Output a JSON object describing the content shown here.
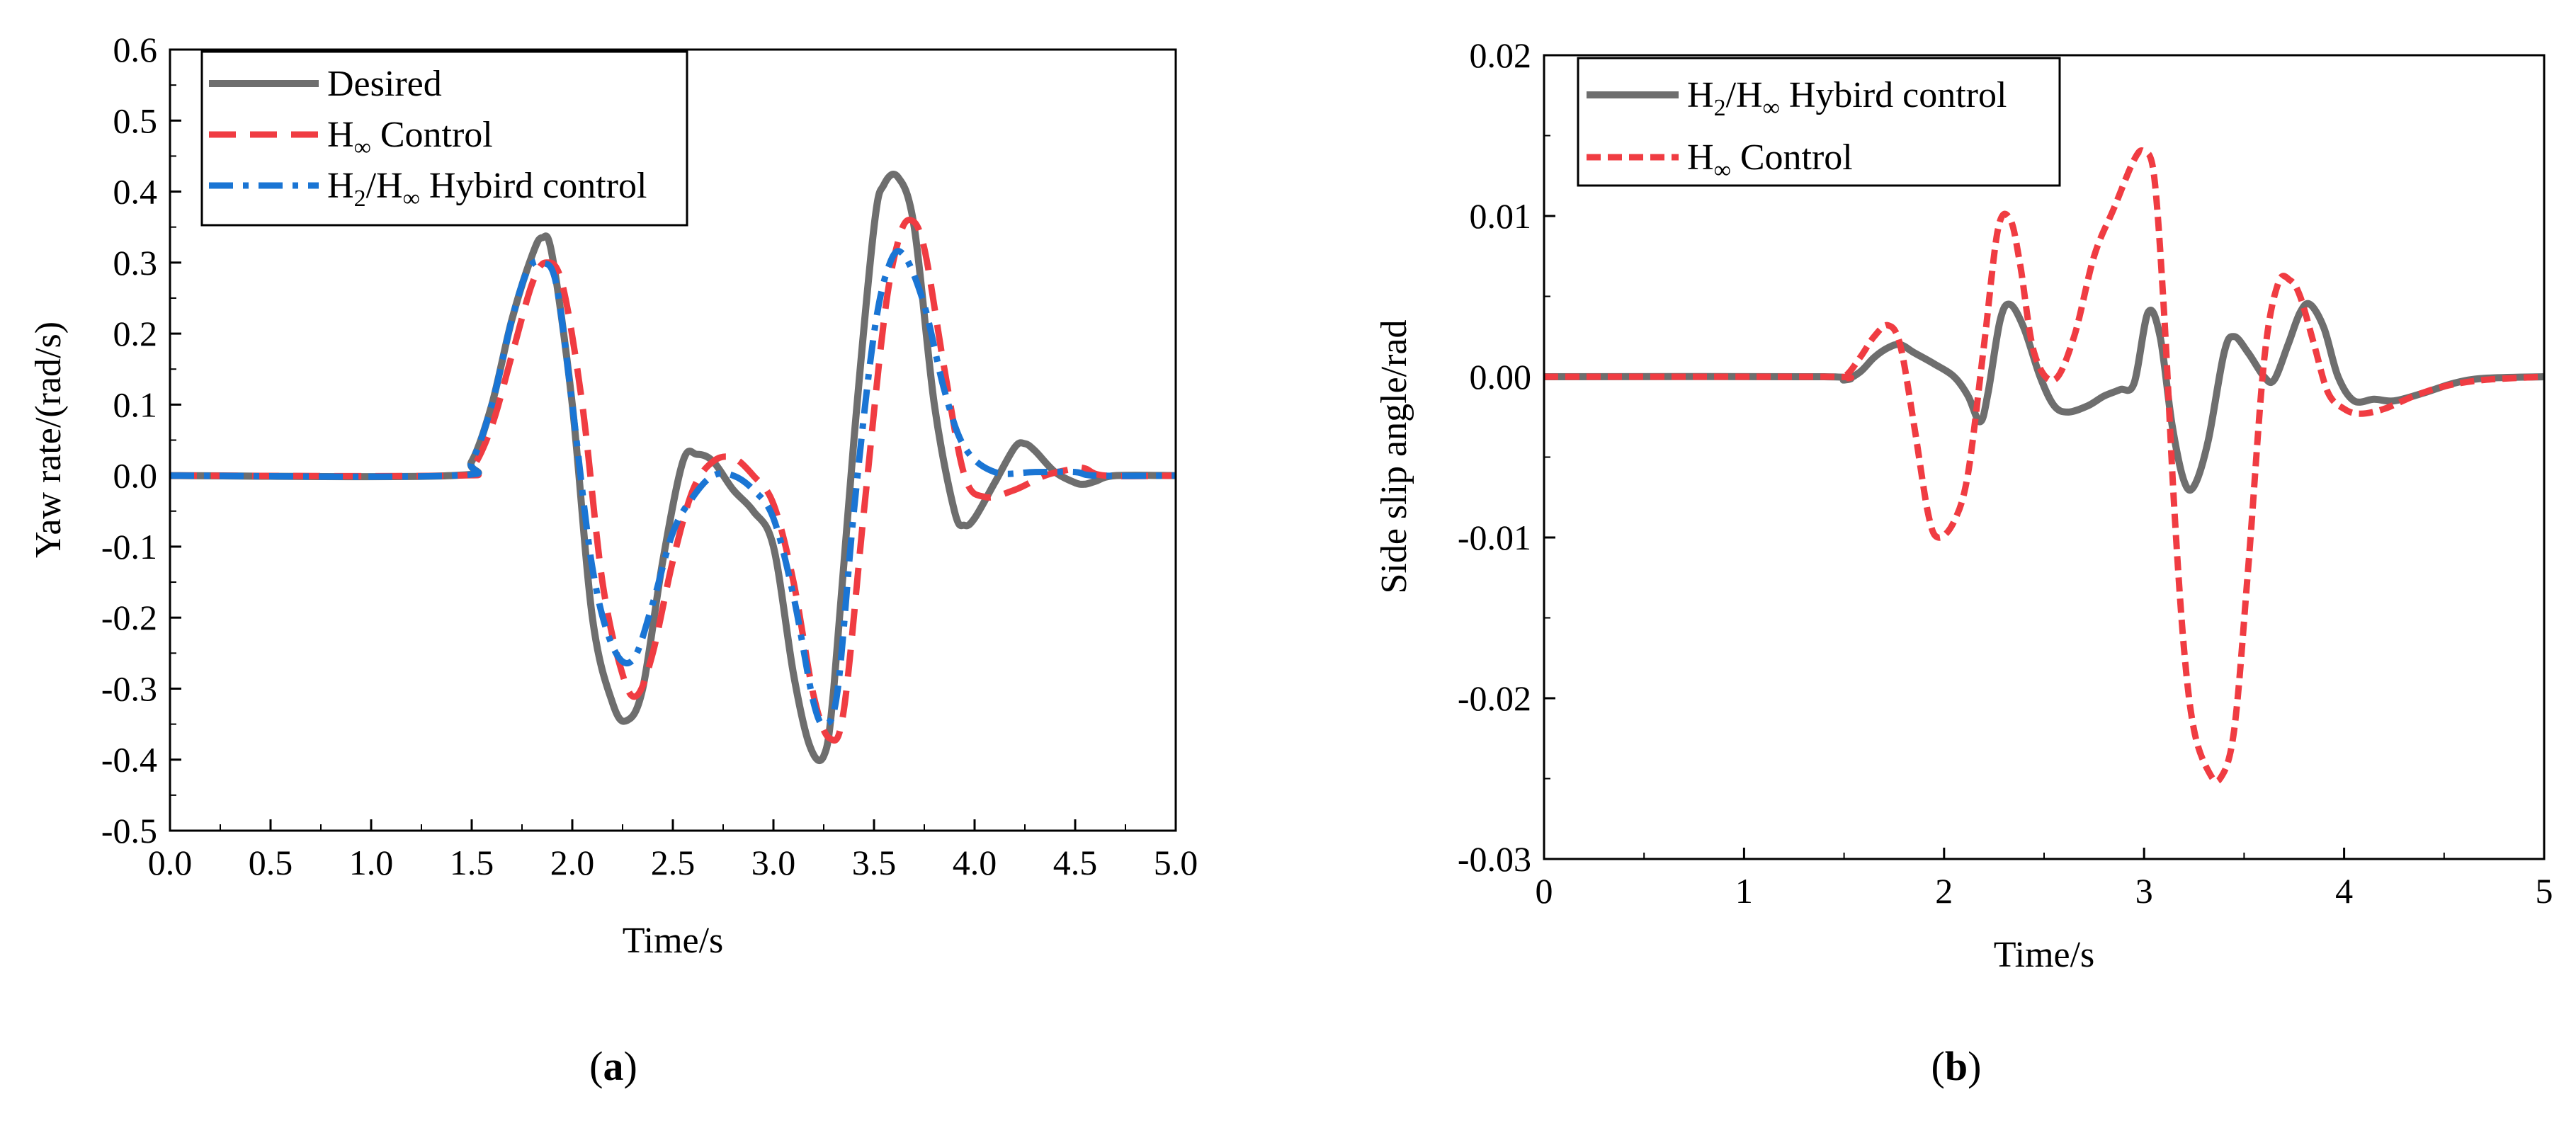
{
  "colors": {
    "desired": "#6e6e6e",
    "h_inf": "#f03c42",
    "hybrid_blue": "#1a75d4",
    "hybrid_gray": "#6e6e6e"
  },
  "panel_a": {
    "caption_letter": "a"
  },
  "panel_b": {
    "caption_letter": "b"
  },
  "chart_data": [
    {
      "type": "line",
      "xlabel": "Time/s",
      "ylabel": "Yaw rate/(rad/s)",
      "xlim": [
        0,
        5
      ],
      "ylim": [
        -0.5,
        0.6
      ],
      "xticks": [
        "0.0",
        "0.5",
        "1.0",
        "1.5",
        "2.0",
        "2.5",
        "3.0",
        "3.5",
        "4.0",
        "4.5",
        "5.0"
      ],
      "yticks": [
        "-0.5",
        "-0.4",
        "-0.3",
        "-0.2",
        "-0.1",
        "0.0",
        "0.1",
        "0.2",
        "0.3",
        "0.4",
        "0.5",
        "0.6"
      ],
      "legend_position": "top-left",
      "legend": [
        {
          "base": "Desired",
          "sub": "",
          "sub2": "",
          "rest": ""
        },
        {
          "base": "H",
          "sub": "∞",
          "sub2": "",
          "rest": " Control"
        },
        {
          "base": "H",
          "sub": "2",
          "sub2": "∞",
          "rest": " Hybird control"
        }
      ],
      "series": [
        {
          "name": "Desired",
          "style": "solid",
          "color": "#6e6e6e",
          "x": [
            0,
            1.4,
            1.5,
            1.6,
            1.7,
            1.8,
            1.85,
            1.9,
            2.0,
            2.1,
            2.2,
            2.27,
            2.35,
            2.45,
            2.55,
            2.62,
            2.7,
            2.8,
            2.9,
            3.0,
            3.1,
            3.18,
            3.25,
            3.3,
            3.4,
            3.5,
            3.55,
            3.62,
            3.7,
            3.8,
            3.9,
            3.95,
            4.0,
            4.1,
            4.2,
            4.25,
            4.3,
            4.4,
            4.5,
            4.55,
            4.6,
            4.7,
            5.0
          ],
          "y": [
            0,
            0,
            0.02,
            0.1,
            0.22,
            0.31,
            0.335,
            0.31,
            0.1,
            -0.2,
            -0.32,
            -0.345,
            -0.3,
            -0.12,
            0.02,
            0.03,
            0.02,
            -0.02,
            -0.05,
            -0.1,
            -0.28,
            -0.38,
            -0.395,
            -0.3,
            0.05,
            0.35,
            0.41,
            0.42,
            0.35,
            0.1,
            -0.05,
            -0.07,
            -0.06,
            -0.01,
            0.04,
            0.045,
            0.035,
            0.005,
            -0.01,
            -0.012,
            -0.008,
            0,
            0
          ]
        },
        {
          "name": "H∞ Control",
          "style": "dashed",
          "color": "#f03c42",
          "x": [
            0,
            1.4,
            1.5,
            1.6,
            1.7,
            1.8,
            1.87,
            1.95,
            2.05,
            2.15,
            2.25,
            2.32,
            2.4,
            2.5,
            2.6,
            2.7,
            2.8,
            2.9,
            3.0,
            3.1,
            3.2,
            3.28,
            3.35,
            3.45,
            3.55,
            3.62,
            3.68,
            3.75,
            3.85,
            3.95,
            4.05,
            4.2,
            4.35,
            4.5,
            4.55,
            4.65,
            5.0
          ],
          "y": [
            0,
            0,
            0.01,
            0.07,
            0.17,
            0.27,
            0.3,
            0.27,
            0.1,
            -0.15,
            -0.28,
            -0.31,
            -0.25,
            -0.12,
            -0.02,
            0.02,
            0.025,
            0.0,
            -0.04,
            -0.15,
            -0.31,
            -0.37,
            -0.33,
            -0.05,
            0.22,
            0.33,
            0.36,
            0.32,
            0.15,
            0.0,
            -0.03,
            -0.02,
            0.0,
            0.01,
            0.01,
            0,
            0
          ]
        },
        {
          "name": "H2/H∞ Hybird control",
          "style": "dashdot",
          "color": "#1a75d4",
          "x": [
            0,
            1.4,
            1.5,
            1.6,
            1.7,
            1.78,
            1.85,
            1.92,
            2.0,
            2.1,
            2.2,
            2.3,
            2.4,
            2.5,
            2.6,
            2.7,
            2.8,
            2.9,
            3.0,
            3.1,
            3.2,
            3.26,
            3.32,
            3.4,
            3.5,
            3.58,
            3.65,
            3.75,
            3.85,
            3.95,
            4.1,
            4.3,
            4.5,
            4.6,
            5.0
          ],
          "y": [
            0,
            0,
            0.02,
            0.1,
            0.22,
            0.29,
            0.3,
            0.27,
            0.1,
            -0.13,
            -0.24,
            -0.26,
            -0.18,
            -0.08,
            -0.03,
            0.0,
            0.0,
            -0.02,
            -0.06,
            -0.17,
            -0.32,
            -0.35,
            -0.3,
            -0.05,
            0.2,
            0.3,
            0.31,
            0.24,
            0.12,
            0.04,
            0.005,
            0.005,
            0.005,
            0,
            0
          ]
        }
      ]
    },
    {
      "type": "line",
      "xlabel": "Time/s",
      "ylabel": "Side slip angle/rad",
      "xlim": [
        0,
        5
      ],
      "ylim": [
        -0.03,
        0.02
      ],
      "xticks": [
        "0",
        "1",
        "2",
        "3",
        "4",
        "5"
      ],
      "yticks": [
        "-0.03",
        "-0.02",
        "-0.01",
        "0.00",
        "0.01",
        "0.02"
      ],
      "legend_position": "top-left",
      "legend": [
        {
          "base": "H",
          "sub": "2",
          "sub2": "∞",
          "rest": " Hybird control"
        },
        {
          "base": "H",
          "sub": "∞",
          "sub2": "",
          "rest": " Control"
        }
      ],
      "series": [
        {
          "name": "H2/H∞ Hybird control",
          "style": "solid",
          "color": "#6e6e6e",
          "x": [
            0,
            1.4,
            1.5,
            1.58,
            1.65,
            1.72,
            1.78,
            1.85,
            1.95,
            2.05,
            2.12,
            2.18,
            2.22,
            2.28,
            2.33,
            2.4,
            2.48,
            2.55,
            2.62,
            2.72,
            2.8,
            2.88,
            2.95,
            3.02,
            3.08,
            3.14,
            3.2,
            3.25,
            3.32,
            3.4,
            3.45,
            3.52,
            3.6,
            3.65,
            3.72,
            3.78,
            3.83,
            3.9,
            3.97,
            4.05,
            4.15,
            4.25,
            4.4,
            4.55,
            4.7,
            5.0
          ],
          "y": [
            0,
            0,
            -0.0002,
            0.0003,
            0.0012,
            0.0018,
            0.002,
            0.0015,
            0.0008,
            0.0,
            -0.0012,
            -0.0028,
            -0.001,
            0.0035,
            0.0045,
            0.003,
            0.0,
            -0.0018,
            -0.0022,
            -0.0018,
            -0.0012,
            -0.0008,
            -0.0004,
            0.004,
            0.0025,
            -0.003,
            -0.0065,
            -0.0068,
            -0.004,
            0.0015,
            0.0025,
            0.0015,
            0.0,
            -0.0002,
            0.002,
            0.004,
            0.0045,
            0.003,
            0.0,
            -0.0015,
            -0.0014,
            -0.0015,
            -0.001,
            -0.0004,
            -0.0001,
            0
          ]
        },
        {
          "name": "H∞ Control",
          "style": "dashed",
          "color": "#f03c42",
          "x": [
            0,
            1.4,
            1.5,
            1.58,
            1.65,
            1.72,
            1.78,
            1.85,
            1.92,
            1.97,
            2.05,
            2.12,
            2.2,
            2.27,
            2.33,
            2.38,
            2.45,
            2.55,
            2.65,
            2.75,
            2.85,
            2.95,
            3.0,
            3.05,
            3.1,
            3.15,
            3.2,
            3.25,
            3.32,
            3.38,
            3.45,
            3.52,
            3.6,
            3.67,
            3.73,
            3.78,
            3.85,
            3.92,
            4.0,
            4.08,
            4.2,
            4.35,
            4.5,
            4.7,
            5.0
          ],
          "y": [
            0,
            0,
            0.0,
            0.0012,
            0.0025,
            0.0032,
            0.002,
            -0.003,
            -0.0085,
            -0.01,
            -0.009,
            -0.006,
            0.002,
            0.0092,
            0.0098,
            0.007,
            0.0015,
            -0.0002,
            0.0025,
            0.0075,
            0.0105,
            0.0135,
            0.014,
            0.0125,
            0.004,
            -0.008,
            -0.017,
            -0.022,
            -0.0245,
            -0.025,
            -0.022,
            -0.012,
            0.001,
            0.0058,
            0.006,
            0.005,
            0.002,
            -0.001,
            -0.002,
            -0.0023,
            -0.002,
            -0.0012,
            -0.0006,
            -0.0002,
            0
          ]
        }
      ]
    }
  ]
}
